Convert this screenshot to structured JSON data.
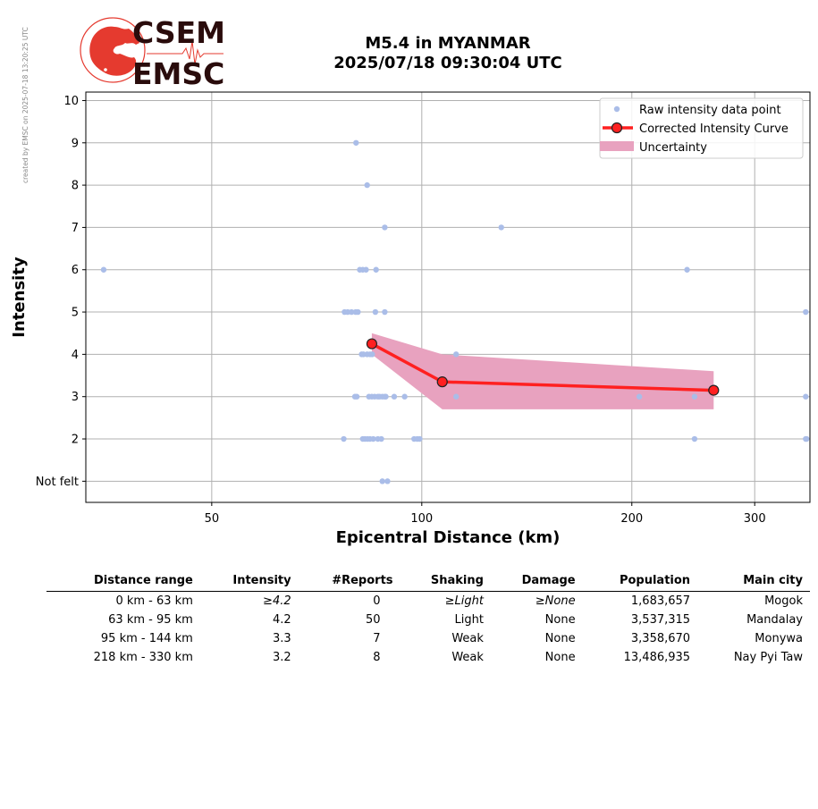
{
  "watermark": "created by EMSC on 2025-07-18 13:20:25 UTC",
  "logo": {
    "line1": "CSEM",
    "line2": "EMSC"
  },
  "header": {
    "title_line1": "M5.4 in MYANMAR",
    "title_line2": "2025/07/18 09:30:04 UTC"
  },
  "colors": {
    "raw": "#aabde8",
    "curve": "#ff2020",
    "uncertainty": "#e8a2bf",
    "logo_red": "#e53a2f",
    "logo_text": "#2a0c0c"
  },
  "chart_data": {
    "type": "scatter",
    "xlabel": "Epicentral Distance (km)",
    "ylabel": "Intensity",
    "x_scale": "log",
    "xlim": [
      33,
      360
    ],
    "ylim": [
      0.5,
      10.2
    ],
    "x_ticks": [
      50,
      100,
      200,
      300
    ],
    "y_ticks": [
      1,
      2,
      3,
      4,
      5,
      6,
      7,
      8,
      9,
      10
    ],
    "y_tick_labels": [
      "Not felt",
      "2",
      "3",
      "4",
      "5",
      "6",
      "7",
      "8",
      "9",
      "10"
    ],
    "grid": true,
    "legend_position": "top-right",
    "legend": [
      "Raw intensity data point",
      "Corrected Intensity Curve",
      "Uncertainty"
    ],
    "raw_points": [
      [
        35,
        6
      ],
      [
        80.5,
        9
      ],
      [
        83.5,
        8
      ],
      [
        88.5,
        7
      ],
      [
        130,
        7
      ],
      [
        81.5,
        6
      ],
      [
        82.3,
        6
      ],
      [
        83.2,
        6
      ],
      [
        86,
        6
      ],
      [
        240,
        6
      ],
      [
        77.5,
        5
      ],
      [
        78.3,
        5
      ],
      [
        79.3,
        5
      ],
      [
        80.4,
        5
      ],
      [
        81,
        5
      ],
      [
        85.8,
        5
      ],
      [
        88.5,
        5
      ],
      [
        355,
        5
      ],
      [
        82,
        4
      ],
      [
        82.5,
        4
      ],
      [
        83.5,
        4
      ],
      [
        84.3,
        4
      ],
      [
        84.9,
        4
      ],
      [
        112,
        4
      ],
      [
        80.2,
        3
      ],
      [
        80.7,
        3
      ],
      [
        84,
        3
      ],
      [
        84.8,
        3
      ],
      [
        85.6,
        3
      ],
      [
        86.5,
        3
      ],
      [
        87,
        3
      ],
      [
        87.8,
        3
      ],
      [
        88.5,
        3
      ],
      [
        88.8,
        3
      ],
      [
        91.3,
        3
      ],
      [
        94.5,
        3
      ],
      [
        112,
        3
      ],
      [
        205,
        3
      ],
      [
        246,
        3
      ],
      [
        355,
        3
      ],
      [
        77.3,
        2
      ],
      [
        82.3,
        2
      ],
      [
        82.9,
        2
      ],
      [
        83.6,
        2
      ],
      [
        84.3,
        2
      ],
      [
        85.2,
        2
      ],
      [
        86.5,
        2
      ],
      [
        87.5,
        2
      ],
      [
        97.5,
        2
      ],
      [
        98.5,
        2
      ],
      [
        99.3,
        2
      ],
      [
        246,
        2
      ],
      [
        355,
        2
      ],
      [
        356,
        2
      ],
      [
        87.8,
        1
      ],
      [
        89.3,
        1
      ]
    ],
    "curve": {
      "x": [
        84.8,
        107,
        262
      ],
      "y": [
        4.25,
        3.35,
        3.15
      ]
    },
    "uncertainty": {
      "x": [
        84.8,
        107,
        262
      ],
      "upper": [
        4.5,
        4.0,
        3.6
      ],
      "lower": [
        4.0,
        2.7,
        2.7
      ]
    }
  },
  "table": {
    "headers": [
      "Distance range",
      "Intensity",
      "#Reports",
      "Shaking",
      "Damage",
      "Population",
      "Main city"
    ],
    "rows": [
      {
        "range": "0 km -   63 km",
        "intensity": "≥4.2",
        "reports": "0",
        "shaking": "≥Light",
        "damage": "≥None",
        "population": "1,683,657",
        "city": "Mogok"
      },
      {
        "range": "63 km -   95 km",
        "intensity": "4.2",
        "reports": "50",
        "shaking": "Light",
        "damage": "None",
        "population": "3,537,315",
        "city": "Mandalay"
      },
      {
        "range": "95 km -  144 km",
        "intensity": "3.3",
        "reports": "7",
        "shaking": "Weak",
        "damage": "None",
        "population": "3,358,670",
        "city": "Monywa"
      },
      {
        "range": "218 km -  330 km",
        "intensity": "3.2",
        "reports": "8",
        "shaking": "Weak",
        "damage": "None",
        "population": "13,486,935",
        "city": "Nay Pyi Taw"
      }
    ]
  }
}
